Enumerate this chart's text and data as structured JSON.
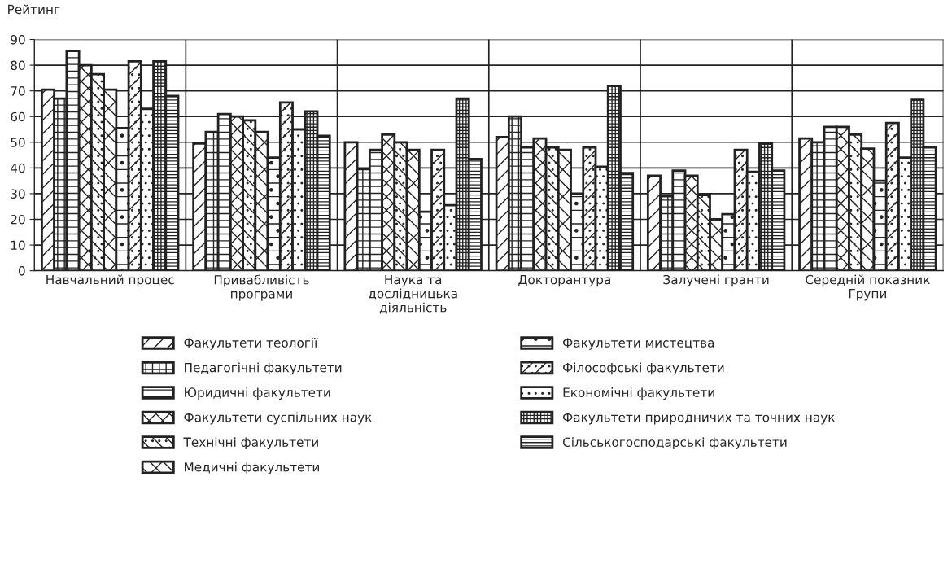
{
  "chart_data": {
    "type": "bar",
    "ylabel": "Рейтинг",
    "categories": [
      "Навчальний процес",
      "Привабливість\nпрограми",
      "Наука та\nдослідницька\nдіяльність",
      "Докторантура",
      "Залучені гранти",
      "Середній показник\nГрупи"
    ],
    "series": [
      {
        "name": "Факультети теології",
        "color": "#222222",
        "values": [
          70.5,
          49.5,
          50,
          52,
          37,
          51.5
        ]
      },
      {
        "name": "Педагогічні факультети",
        "color": "#222222",
        "values": [
          67,
          54,
          39.5,
          60,
          29,
          50
        ]
      },
      {
        "name": "Юридичні факультети",
        "color": "#222222",
        "values": [
          85.5,
          61,
          47,
          48,
          39,
          56
        ]
      },
      {
        "name": "Факультети суспільних наук",
        "color": "#222222",
        "values": [
          80,
          60,
          53,
          51.5,
          37,
          56
        ]
      },
      {
        "name": "Технічні факультети",
        "color": "#222222",
        "values": [
          76.5,
          58.5,
          50,
          48,
          29.5,
          53
        ]
      },
      {
        "name": "Медичні факультети",
        "color": "#222222",
        "values": [
          70.5,
          54,
          47,
          47,
          20,
          47.5
        ]
      },
      {
        "name": "Факультети мистецтва",
        "color": "#222222",
        "values": [
          55.5,
          44,
          23,
          30,
          22,
          35
        ]
      },
      {
        "name": "Філософські факультети",
        "color": "#222222",
        "values": [
          81.5,
          65.5,
          47,
          48,
          47,
          57.5
        ]
      },
      {
        "name": "Економічні факультети",
        "color": "#222222",
        "values": [
          63,
          55,
          25.5,
          40.5,
          38.5,
          44
        ]
      },
      {
        "name": "Факультети природничих та точних наук",
        "color": "#222222",
        "values": [
          81.5,
          62,
          67,
          72,
          49.5,
          66.5
        ]
      },
      {
        "name": "Сільськогосподарські факультети",
        "color": "#222222",
        "values": [
          68,
          52.5,
          43.5,
          38,
          39,
          48
        ]
      }
    ],
    "ylim": [
      0,
      90
    ],
    "yticks": [
      0,
      10,
      20,
      30,
      40,
      50,
      60,
      70,
      80,
      90
    ],
    "grid": true,
    "legend": "bottom"
  }
}
